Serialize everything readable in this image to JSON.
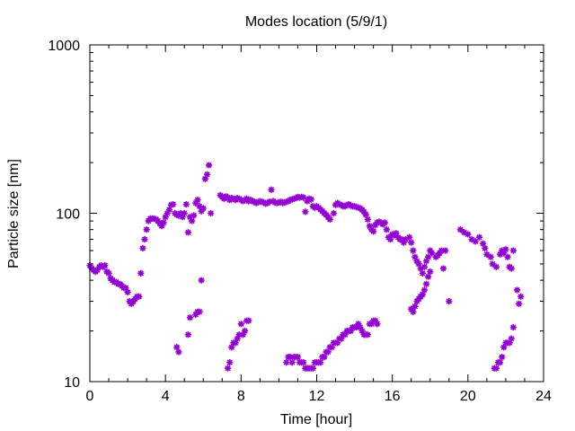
{
  "chart_data": {
    "type": "scatter",
    "title": "Modes location (5/9/1)",
    "xlabel": "Time [hour]",
    "ylabel": "Particle size [nm]",
    "xlim": [
      0,
      24
    ],
    "ylim": [
      10,
      1000
    ],
    "yscale": "log",
    "grid": false,
    "legend": "none",
    "marker": "asterisk",
    "color": "#9400d3",
    "x_ticks": [
      0,
      4,
      8,
      12,
      16,
      20,
      24
    ],
    "x_tick_labels": [
      "0",
      "4",
      "8",
      "12",
      "16",
      "20",
      "24"
    ],
    "y_ticks": [
      10,
      100,
      1000
    ],
    "y_tick_labels": [
      "10",
      "100",
      "1000"
    ],
    "series": [
      {
        "points": [
          [
            0.0,
            49
          ],
          [
            0.1,
            47
          ],
          [
            0.2,
            46
          ],
          [
            0.3,
            45
          ],
          [
            0.4,
            46
          ],
          [
            0.5,
            48
          ],
          [
            0.6,
            49
          ],
          [
            0.7,
            48
          ],
          [
            0.8,
            49
          ],
          [
            0.9,
            45
          ],
          [
            1.0,
            44
          ],
          [
            1.1,
            41
          ],
          [
            1.2,
            40
          ],
          [
            1.3,
            39
          ],
          [
            1.4,
            39
          ],
          [
            1.5,
            38
          ],
          [
            1.6,
            38
          ],
          [
            1.7,
            37
          ],
          [
            1.8,
            36
          ],
          [
            1.9,
            36
          ],
          [
            2.0,
            34
          ],
          [
            2.1,
            30
          ],
          [
            2.2,
            29
          ],
          [
            2.3,
            30
          ],
          [
            2.4,
            31
          ],
          [
            2.5,
            32
          ],
          [
            2.6,
            32
          ],
          [
            2.7,
            44
          ],
          [
            2.8,
            62
          ],
          [
            2.9,
            70
          ],
          [
            3.0,
            80
          ],
          [
            3.1,
            90
          ],
          [
            3.2,
            93
          ],
          [
            3.3,
            93
          ],
          [
            3.4,
            93
          ],
          [
            3.5,
            92
          ],
          [
            3.6,
            90
          ],
          [
            3.7,
            87
          ],
          [
            3.8,
            84
          ],
          [
            3.9,
            88
          ],
          [
            4.0,
            95
          ],
          [
            4.1,
            100
          ],
          [
            4.2,
            105
          ],
          [
            4.3,
            112
          ],
          [
            4.4,
            113
          ],
          [
            4.5,
            100
          ],
          [
            4.6,
            98
          ],
          [
            4.7,
            97
          ],
          [
            4.8,
            100
          ],
          [
            4.9,
            95
          ],
          [
            5.0,
            100
          ],
          [
            5.1,
            113
          ],
          [
            5.2,
            77
          ],
          [
            5.3,
            95
          ],
          [
            5.4,
            90
          ],
          [
            5.5,
            97
          ],
          [
            5.6,
            115
          ],
          [
            5.7,
            120
          ],
          [
            5.8,
            110
          ],
          [
            5.9,
            103
          ],
          [
            6.0,
            107
          ],
          [
            6.1,
            160
          ],
          [
            6.2,
            170
          ],
          [
            6.3,
            193
          ],
          [
            6.4,
            100
          ],
          [
            6.9,
            128
          ],
          [
            7.0,
            125
          ],
          [
            7.1,
            122
          ],
          [
            7.2,
            126
          ],
          [
            7.3,
            124
          ],
          [
            7.4,
            120
          ],
          [
            7.5,
            123
          ],
          [
            7.6,
            122
          ],
          [
            7.7,
            120
          ],
          [
            7.8,
            123
          ],
          [
            7.9,
            122
          ],
          [
            8.0,
            120
          ],
          [
            8.1,
            118
          ],
          [
            8.2,
            120
          ],
          [
            8.3,
            122
          ],
          [
            8.4,
            118
          ],
          [
            8.5,
            120
          ],
          [
            8.6,
            118
          ],
          [
            8.7,
            117
          ],
          [
            8.8,
            115
          ],
          [
            8.9,
            116
          ],
          [
            9.0,
            118
          ],
          [
            9.1,
            117
          ],
          [
            9.2,
            116
          ],
          [
            9.3,
            114
          ],
          [
            9.4,
            115
          ],
          [
            9.5,
            117
          ],
          [
            9.6,
            138
          ],
          [
            9.7,
            118
          ],
          [
            9.8,
            116
          ],
          [
            9.9,
            115
          ],
          [
            10.0,
            116
          ],
          [
            10.1,
            117
          ],
          [
            10.2,
            115
          ],
          [
            10.3,
            116
          ],
          [
            10.4,
            117
          ],
          [
            10.5,
            118
          ],
          [
            10.6,
            120
          ],
          [
            10.7,
            121
          ],
          [
            10.8,
            122
          ],
          [
            10.9,
            123
          ],
          [
            11.0,
            125
          ],
          [
            11.1,
            124
          ],
          [
            11.2,
            125
          ],
          [
            11.3,
            124
          ],
          [
            11.4,
            102
          ],
          [
            11.5,
            118
          ],
          [
            11.6,
            122
          ],
          [
            11.7,
            121
          ],
          [
            11.8,
            110
          ],
          [
            11.9,
            108
          ],
          [
            12.0,
            110
          ],
          [
            12.1,
            108
          ],
          [
            12.2,
            105
          ],
          [
            12.3,
            103
          ],
          [
            12.4,
            100
          ],
          [
            12.5,
            98
          ],
          [
            12.6,
            95
          ],
          [
            12.7,
            92
          ],
          [
            12.9,
            100
          ],
          [
            13.0,
            112
          ],
          [
            13.1,
            115
          ],
          [
            13.2,
            113
          ],
          [
            13.3,
            112
          ],
          [
            13.4,
            110
          ],
          [
            13.5,
            110
          ],
          [
            13.6,
            112
          ],
          [
            13.7,
            113
          ],
          [
            13.8,
            111
          ],
          [
            13.9,
            110
          ],
          [
            14.0,
            110
          ],
          [
            14.1,
            109
          ],
          [
            14.2,
            108
          ],
          [
            14.3,
            107
          ],
          [
            14.4,
            105
          ],
          [
            14.5,
            102
          ],
          [
            14.6,
            98
          ],
          [
            14.7,
            92
          ],
          [
            14.8,
            84
          ],
          [
            14.9,
            80
          ],
          [
            15.0,
            78
          ],
          [
            15.1,
            85
          ],
          [
            15.2,
            88
          ],
          [
            15.3,
            89
          ],
          [
            15.4,
            88
          ],
          [
            15.5,
            86
          ],
          [
            15.6,
            88
          ],
          [
            15.7,
            80
          ],
          [
            15.8,
            72
          ],
          [
            15.9,
            70
          ],
          [
            16.0,
            75
          ],
          [
            16.1,
            74
          ],
          [
            16.2,
            76
          ],
          [
            16.3,
            72
          ],
          [
            16.4,
            70
          ],
          [
            16.5,
            70
          ],
          [
            16.6,
            67
          ],
          [
            16.7,
            70
          ],
          [
            16.9,
            72
          ],
          [
            17.0,
            67
          ],
          [
            17.1,
            60
          ],
          [
            17.2,
            55
          ],
          [
            17.3,
            52
          ],
          [
            17.4,
            50
          ],
          [
            17.5,
            47
          ],
          [
            17.6,
            44
          ],
          [
            17.7,
            48
          ],
          [
            17.8,
            52
          ],
          [
            17.9,
            55
          ],
          [
            18.0,
            60
          ],
          [
            18.1,
            58
          ],
          [
            18.3,
            55
          ],
          [
            18.4,
            56
          ],
          [
            18.5,
            58
          ],
          [
            18.6,
            60
          ],
          [
            18.7,
            47
          ],
          [
            18.8,
            60
          ],
          [
            19.0,
            30
          ]
        ]
      },
      {
        "points": [
          [
            4.6,
            16
          ],
          [
            4.7,
            15
          ],
          [
            5.2,
            19
          ],
          [
            5.3,
            24
          ],
          [
            5.6,
            25
          ],
          [
            5.7,
            26
          ],
          [
            5.8,
            26
          ],
          [
            5.9,
            40
          ],
          [
            7.3,
            12
          ],
          [
            7.4,
            13
          ],
          [
            7.5,
            16
          ],
          [
            7.6,
            17
          ],
          [
            7.7,
            17
          ],
          [
            7.8,
            18
          ],
          [
            7.9,
            19
          ],
          [
            8.0,
            22
          ],
          [
            8.1,
            19
          ],
          [
            8.2,
            20
          ],
          [
            8.3,
            23
          ],
          [
            8.4,
            23
          ],
          [
            10.4,
            13
          ],
          [
            10.5,
            14
          ],
          [
            10.6,
            14
          ],
          [
            10.7,
            13
          ],
          [
            10.8,
            14
          ],
          [
            10.9,
            14
          ],
          [
            11.0,
            14
          ],
          [
            11.1,
            13
          ],
          [
            11.2,
            13
          ],
          [
            11.3,
            13
          ],
          [
            11.4,
            12
          ],
          [
            11.5,
            12
          ],
          [
            11.6,
            12
          ],
          [
            11.7,
            12
          ],
          [
            11.8,
            12
          ],
          [
            11.9,
            13
          ],
          [
            12.0,
            13
          ],
          [
            12.1,
            13
          ],
          [
            12.2,
            13
          ],
          [
            12.3,
            14
          ],
          [
            12.4,
            14
          ],
          [
            12.5,
            15
          ],
          [
            12.6,
            15
          ],
          [
            12.7,
            16
          ],
          [
            12.8,
            16
          ],
          [
            12.9,
            17
          ],
          [
            13.0,
            17
          ],
          [
            13.1,
            17
          ],
          [
            13.2,
            18
          ],
          [
            13.3,
            18
          ],
          [
            13.4,
            19
          ],
          [
            13.5,
            19
          ],
          [
            13.6,
            20
          ],
          [
            13.7,
            20
          ],
          [
            13.8,
            20
          ],
          [
            13.9,
            21
          ],
          [
            14.0,
            21
          ],
          [
            14.1,
            21
          ],
          [
            14.2,
            22
          ],
          [
            14.3,
            21
          ],
          [
            14.4,
            20
          ],
          [
            14.5,
            19
          ],
          [
            14.6,
            19
          ],
          [
            14.7,
            19
          ],
          [
            14.8,
            22
          ],
          [
            14.9,
            22
          ],
          [
            15.0,
            23
          ],
          [
            15.1,
            23
          ],
          [
            15.2,
            22
          ],
          [
            17.0,
            27
          ],
          [
            17.1,
            26
          ],
          [
            17.2,
            28
          ],
          [
            17.3,
            30
          ],
          [
            17.4,
            31
          ],
          [
            17.5,
            32
          ],
          [
            17.6,
            33
          ],
          [
            17.7,
            35
          ],
          [
            17.8,
            38
          ],
          [
            17.9,
            42
          ],
          [
            18.0,
            45
          ],
          [
            21.4,
            12
          ],
          [
            21.5,
            12
          ],
          [
            21.6,
            13
          ],
          [
            21.7,
            13
          ],
          [
            21.8,
            14
          ],
          [
            21.9,
            16
          ],
          [
            22.0,
            17
          ],
          [
            22.1,
            17
          ],
          [
            22.2,
            17
          ],
          [
            22.3,
            18
          ],
          [
            22.4,
            21
          ]
        ]
      },
      {
        "points": [
          [
            19.6,
            80
          ],
          [
            19.8,
            77
          ],
          [
            20.0,
            75
          ],
          [
            20.2,
            70
          ],
          [
            20.4,
            68
          ],
          [
            20.6,
            72
          ],
          [
            20.8,
            66
          ],
          [
            20.9,
            62
          ],
          [
            21.0,
            57
          ],
          [
            21.2,
            55
          ],
          [
            21.3,
            50
          ],
          [
            21.5,
            48
          ],
          [
            21.7,
            57
          ],
          [
            21.8,
            60
          ],
          [
            21.9,
            58
          ],
          [
            22.0,
            61
          ],
          [
            22.1,
            55
          ],
          [
            22.2,
            48
          ],
          [
            22.3,
            47
          ],
          [
            22.4,
            60
          ],
          [
            22.6,
            35
          ],
          [
            22.7,
            29
          ],
          [
            22.8,
            32
          ]
        ]
      }
    ]
  }
}
